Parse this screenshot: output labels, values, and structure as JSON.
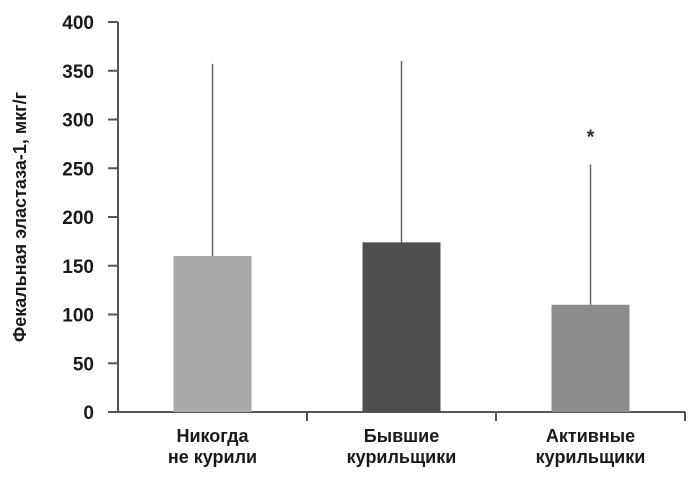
{
  "chart_data": {
    "type": "bar",
    "title": "",
    "xlabel": "",
    "ylabel": "Фекальная эластаза-1, мкг/г",
    "ylim": [
      0,
      400
    ],
    "yticks": [
      0,
      50,
      100,
      150,
      200,
      250,
      300,
      350,
      400
    ],
    "grid": false,
    "legend": "none",
    "categories": [
      [
        "Никогда",
        "не курили"
      ],
      [
        "Бывшие",
        "курильщики"
      ],
      [
        "Активные",
        "курильщики"
      ]
    ],
    "values": [
      160,
      174,
      110
    ],
    "error_upper": [
      357,
      360,
      254
    ],
    "bar_colors": [
      "#a9a9a9",
      "#4f4f4f",
      "#8c8c8c"
    ],
    "annotations": [
      {
        "category_index": 2,
        "text": "*",
        "y": 290
      }
    ]
  }
}
